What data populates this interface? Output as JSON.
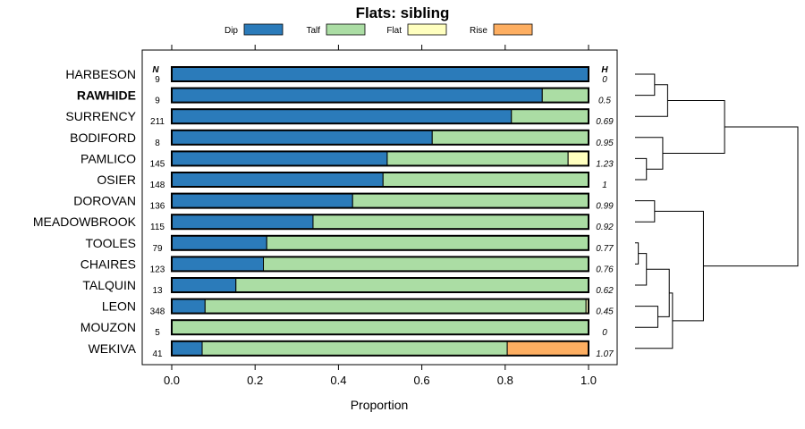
{
  "chart_data": {
    "type": "bar",
    "stacked": true,
    "orientation": "horizontal",
    "title": "Flats: sibling",
    "xlabel": "Proportion",
    "xlim": [
      0,
      1
    ],
    "xticks": [
      "0.0",
      "0.2",
      "0.4",
      "0.6",
      "0.8",
      "1.0"
    ],
    "xtick_values": [
      0,
      0.2,
      0.4,
      0.6,
      0.8,
      1.0
    ],
    "n_header": "N",
    "h_header": "H",
    "series": [
      {
        "name": "Dip",
        "color": "#2b7bba"
      },
      {
        "name": "Talf",
        "color": "#abdda4"
      },
      {
        "name": "Flat",
        "color": "#ffffbf"
      },
      {
        "name": "Rise",
        "color": "#fdae61"
      }
    ],
    "rows": [
      {
        "label": "HARBESON",
        "bold": false,
        "n": "9",
        "h": "0",
        "values": [
          1.0,
          0,
          0,
          0
        ]
      },
      {
        "label": "RAWHIDE",
        "bold": true,
        "n": "9",
        "h": "0.5",
        "values": [
          0.889,
          0.111,
          0,
          0
        ]
      },
      {
        "label": "SURRENCY",
        "bold": false,
        "n": "211",
        "h": "0.69",
        "values": [
          0.815,
          0.185,
          0,
          0
        ]
      },
      {
        "label": "BODIFORD",
        "bold": false,
        "n": "8",
        "h": "0.95",
        "values": [
          0.625,
          0.375,
          0,
          0
        ]
      },
      {
        "label": "PAMLICO",
        "bold": false,
        "n": "145",
        "h": "1.23",
        "values": [
          0.517,
          0.434,
          0.049,
          0
        ]
      },
      {
        "label": "OSIER",
        "bold": false,
        "n": "148",
        "h": "1",
        "values": [
          0.507,
          0.493,
          0,
          0
        ]
      },
      {
        "label": "DOROVAN",
        "bold": false,
        "n": "136",
        "h": "0.99",
        "values": [
          0.434,
          0.566,
          0,
          0
        ]
      },
      {
        "label": "MEADOWBROOK",
        "bold": false,
        "n": "115",
        "h": "0.92",
        "values": [
          0.339,
          0.661,
          0,
          0
        ]
      },
      {
        "label": "TOOLES",
        "bold": false,
        "n": "79",
        "h": "0.77",
        "values": [
          0.228,
          0.772,
          0,
          0
        ]
      },
      {
        "label": "CHAIRES",
        "bold": false,
        "n": "123",
        "h": "0.76",
        "values": [
          0.22,
          0.78,
          0,
          0
        ]
      },
      {
        "label": "TALQUIN",
        "bold": false,
        "n": "13",
        "h": "0.62",
        "values": [
          0.154,
          0.846,
          0,
          0
        ]
      },
      {
        "label": "LEON",
        "bold": false,
        "n": "348",
        "h": "0.45",
        "values": [
          0.08,
          0.914,
          0.006,
          0
        ]
      },
      {
        "label": "MOUZON",
        "bold": false,
        "n": "5",
        "h": "0",
        "values": [
          0,
          1.0,
          0,
          0
        ]
      },
      {
        "label": "WEKIVA",
        "bold": false,
        "n": "41",
        "h": "1.07",
        "values": [
          0.073,
          0.732,
          0,
          0.195
        ]
      }
    ],
    "dendrogram": {
      "type": "hierarchical-clustering",
      "leaf_order": [
        "HARBESON",
        "RAWHIDE",
        "SURRENCY",
        "BODIFORD",
        "PAMLICO",
        "OSIER",
        "DOROVAN",
        "MEADOWBROOK",
        "TOOLES",
        "CHAIRES",
        "TALQUIN",
        "LEON",
        "MOUZON",
        "WEKIVA"
      ],
      "merges": [
        {
          "a": 0,
          "b": 1,
          "h": 0.12
        },
        {
          "a": 2,
          "b": "m0",
          "h": 0.2
        },
        {
          "a": 4,
          "b": 5,
          "h": 0.07
        },
        {
          "a": 3,
          "b": "m2",
          "h": 0.17
        },
        {
          "a": "m1",
          "b": "m3",
          "h": 0.55
        },
        {
          "a": 6,
          "b": 7,
          "h": 0.12
        },
        {
          "a": 8,
          "b": 9,
          "h": 0.02
        },
        {
          "a": "m6",
          "b": 10,
          "h": 0.07
        },
        {
          "a": 11,
          "b": 12,
          "h": 0.14
        },
        {
          "a": "m7",
          "b": "m8",
          "h": 0.21
        },
        {
          "a": "m9",
          "b": 13,
          "h": 0.23
        },
        {
          "a": "m5",
          "b": "m10",
          "h": 0.42
        },
        {
          "a": "m4",
          "b": "m11",
          "h": 1.0
        }
      ]
    }
  }
}
